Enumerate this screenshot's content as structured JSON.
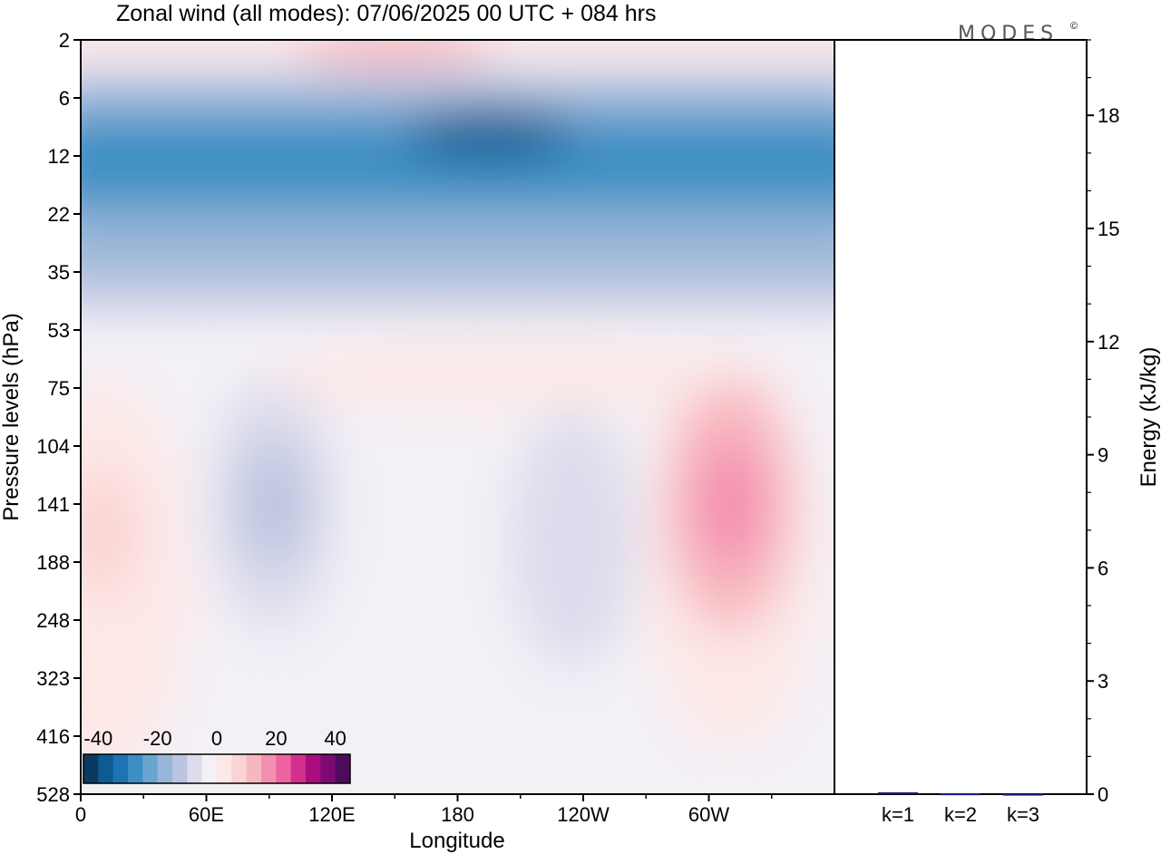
{
  "title": "Zonal wind (all modes):  07/06/2025  00 UTC  + 084 hrs",
  "logo": "MODES",
  "logo_mark": "©",
  "colors": {
    "scale": [
      "#0a3a60",
      "#0d5c90",
      "#1d73b3",
      "#3c8fc5",
      "#6aa5cf",
      "#95b6d8",
      "#bcc4e0",
      "#dcdcec",
      "#f3f0f6",
      "#fde8e6",
      "#fbd3d3",
      "#f7b7c0",
      "#f48fb0",
      "#ee62a2",
      "#d32f8e",
      "#a80e7d",
      "#7c0a72",
      "#4e0b5d"
    ],
    "frame": "#000000",
    "bar_fill": "#1c1c8c"
  },
  "chart_data": [
    {
      "type": "heatmap",
      "title": "Zonal wind (all modes):  07/06/2025  00 UTC  + 084 hrs",
      "xlabel": "Longitude",
      "ylabel": "Pressure levels (hPa)",
      "x_ticks": [
        "0",
        "60E",
        "120E",
        "180",
        "120W",
        "60W"
      ],
      "x_tick_values": [
        0,
        60,
        120,
        180,
        240,
        300
      ],
      "xlim": [
        0,
        360
      ],
      "y_levels": [
        2,
        6,
        12,
        22,
        35,
        53,
        75,
        104,
        141,
        188,
        248,
        323,
        416,
        528
      ],
      "y_ticks": [
        "2",
        "6",
        "12",
        "22",
        "35",
        "53",
        "75",
        "104",
        "141",
        "188",
        "248",
        "323",
        "416",
        "528"
      ],
      "colorbar": {
        "tick_labels": [
          "-40",
          "-20",
          "0",
          "20",
          "40"
        ],
        "tick_values": [
          -40,
          -20,
          0,
          20,
          40
        ],
        "range": [
          -45,
          45
        ],
        "step": 5
      },
      "features": [
        {
          "value": -38,
          "lon_center": 195,
          "level_index": 1.6,
          "note": "strongest easterly core"
        },
        {
          "value": -30,
          "lon_range": [
            0,
            360
          ],
          "level_range": [
            1.3,
            2.9
          ]
        },
        {
          "value": -12,
          "lon_center": 92,
          "level_index": 8.0
        },
        {
          "value": -10,
          "lon_center": 235,
          "level_index": 8.6
        },
        {
          "value": 18,
          "lon_center": 310,
          "level_index": 8.0,
          "note": "westerly maximum"
        },
        {
          "value": 8,
          "lon_center": 10,
          "level_index": 8.5
        }
      ]
    },
    {
      "type": "bar",
      "ylabel": "Energy (kJ/kg)",
      "categories": [
        "k=1",
        "k=2",
        "k=3"
      ],
      "values": [
        0.05,
        0.02,
        0.01
      ],
      "yticks": [
        "0",
        "3",
        "6",
        "9",
        "12",
        "15",
        "18"
      ],
      "ytick_values": [
        0,
        3,
        6,
        9,
        12,
        15,
        18
      ],
      "ylim": [
        0,
        20
      ]
    }
  ]
}
